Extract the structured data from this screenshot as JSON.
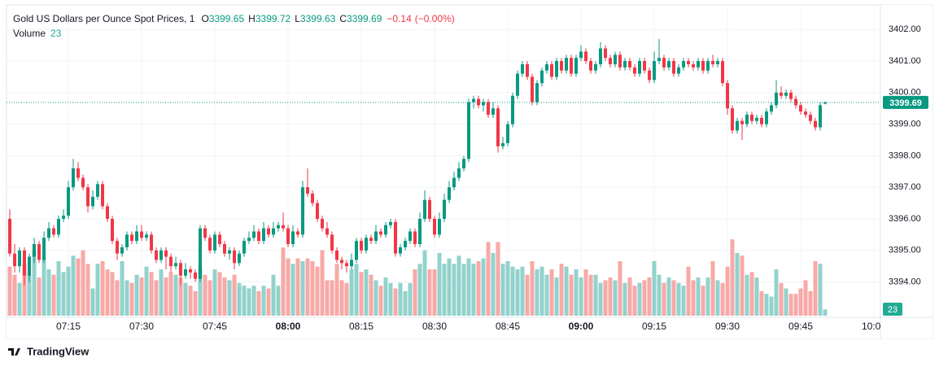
{
  "chart_data": {
    "type": "candlestick",
    "title": "Gold US Dollars per Ounce Spot Prices, 1",
    "header": [
      {
        "label": "O",
        "value": 3399.65
      },
      {
        "label": "H",
        "value": 3399.72
      },
      {
        "label": "L",
        "value": 3399.63
      },
      {
        "label": "C",
        "value": 3399.69
      }
    ],
    "change": {
      "value": -0.14,
      "label": "−0.14"
    },
    "change_percent": {
      "value": -0.004,
      "label": "(−0.00%)"
    },
    "volume_label": "Volume",
    "last_volume": 23,
    "last_price": 3399.69,
    "up_color": "#089981",
    "down_color": "#f23645",
    "volume_up_color": "#92d2cc",
    "volume_down_color": "#f7a9a7",
    "grid": true,
    "xlim": [
      -0.67,
      178.33
    ],
    "xticks": [
      {
        "value": 12,
        "label": "07:15"
      },
      {
        "value": 27,
        "label": "07:30"
      },
      {
        "value": 42,
        "label": "07:45"
      },
      {
        "value": 57,
        "label": "08:00"
      },
      {
        "value": 72,
        "label": "08:15"
      },
      {
        "value": 87,
        "label": "08:30"
      },
      {
        "value": 102,
        "label": "08:45"
      },
      {
        "value": 117,
        "label": "09:00"
      },
      {
        "value": 132,
        "label": "09:15"
      },
      {
        "value": 147,
        "label": "09:30"
      },
      {
        "value": 162,
        "label": "09:45"
      },
      {
        "value": 177,
        "label": "10:00"
      }
    ],
    "bold_xticks": [
      3,
      7
    ],
    "ylim": [
      3392.88,
      3402.78
    ],
    "yticks": [
      {
        "value": 3394,
        "label": "3394.00"
      },
      {
        "value": 3395,
        "label": "3395.00"
      },
      {
        "value": 3396,
        "label": "3396.00"
      },
      {
        "value": 3397,
        "label": "3397.00"
      },
      {
        "value": 3398,
        "label": "3398.00"
      },
      {
        "value": 3399,
        "label": "3399.00"
      },
      {
        "value": 3400,
        "label": "3400.00"
      },
      {
        "value": 3401,
        "label": "3401.00"
      },
      {
        "value": 3402,
        "label": "3402.00"
      }
    ],
    "volume_lim": [
      0,
      1140
    ],
    "candles": [
      [
        3396.0,
        3396.3,
        3394.8,
        3394.9,
        180
      ],
      [
        3394.9,
        3395.2,
        3394.3,
        3394.5,
        150
      ],
      [
        3394.5,
        3395.1,
        3394.3,
        3395.0,
        120
      ],
      [
        3395.0,
        3395.1,
        3393.9,
        3394.2,
        190
      ],
      [
        3394.2,
        3394.9,
        3394.0,
        3394.8,
        150
      ],
      [
        3394.8,
        3395.4,
        3394.6,
        3395.2,
        240
      ],
      [
        3395.2,
        3395.3,
        3394.6,
        3394.7,
        140
      ],
      [
        3394.7,
        3395.6,
        3394.6,
        3395.4,
        210
      ],
      [
        3395.4,
        3395.9,
        3395.3,
        3395.7,
        170
      ],
      [
        3395.7,
        3395.8,
        3395.4,
        3395.5,
        150
      ],
      [
        3395.5,
        3396.1,
        3395.4,
        3396.0,
        200
      ],
      [
        3396.0,
        3396.3,
        3395.9,
        3396.1,
        160
      ],
      [
        3396.1,
        3397.2,
        3396.0,
        3397.0,
        180
      ],
      [
        3397.0,
        3397.9,
        3396.9,
        3397.6,
        220
      ],
      [
        3397.6,
        3397.8,
        3397.2,
        3397.3,
        210
      ],
      [
        3397.3,
        3397.4,
        3396.9,
        3397.0,
        240
      ],
      [
        3397.0,
        3397.1,
        3396.2,
        3396.4,
        190
      ],
      [
        3396.4,
        3396.9,
        3396.3,
        3396.7,
        100
      ],
      [
        3396.7,
        3397.2,
        3396.6,
        3397.1,
        190
      ],
      [
        3397.1,
        3397.2,
        3396.3,
        3396.4,
        200
      ],
      [
        3396.4,
        3396.5,
        3395.9,
        3396.0,
        170
      ],
      [
        3396.0,
        3396.1,
        3395.2,
        3395.3,
        160
      ],
      [
        3395.3,
        3395.4,
        3394.7,
        3394.9,
        130
      ],
      [
        3394.9,
        3395.2,
        3394.8,
        3395.1,
        200
      ],
      [
        3395.1,
        3395.6,
        3395.0,
        3395.5,
        130
      ],
      [
        3395.5,
        3395.6,
        3395.2,
        3395.3,
        120
      ],
      [
        3395.3,
        3395.8,
        3395.2,
        3395.6,
        150
      ],
      [
        3395.6,
        3395.8,
        3395.3,
        3395.4,
        140
      ],
      [
        3395.4,
        3395.6,
        3395.3,
        3395.5,
        180
      ],
      [
        3395.5,
        3395.6,
        3394.9,
        3395.0,
        160
      ],
      [
        3395.0,
        3395.1,
        3394.6,
        3394.7,
        130
      ],
      [
        3394.7,
        3395.1,
        3394.6,
        3395.0,
        170
      ],
      [
        3395.0,
        3395.1,
        3394.4,
        3394.8,
        140
      ],
      [
        3394.8,
        3394.9,
        3394.3,
        3394.5,
        160
      ],
      [
        3394.5,
        3394.8,
        3394.4,
        3394.6,
        150
      ],
      [
        3394.6,
        3394.7,
        3393.9,
        3394.2,
        140
      ],
      [
        3394.2,
        3394.6,
        3394.1,
        3394.4,
        120
      ],
      [
        3394.4,
        3394.5,
        3394.1,
        3394.3,
        110
      ],
      [
        3394.3,
        3394.4,
        3394.0,
        3394.1,
        90
      ],
      [
        3394.1,
        3395.8,
        3394.0,
        3395.7,
        180
      ],
      [
        3395.7,
        3395.8,
        3395.3,
        3395.4,
        150
      ],
      [
        3395.4,
        3395.5,
        3394.9,
        3395.0,
        130
      ],
      [
        3395.0,
        3395.6,
        3394.9,
        3395.5,
        170
      ],
      [
        3395.5,
        3395.6,
        3395.1,
        3395.2,
        160
      ],
      [
        3395.2,
        3395.3,
        3394.8,
        3394.9,
        140
      ],
      [
        3394.9,
        3395.1,
        3394.7,
        3395.0,
        130
      ],
      [
        3395.0,
        3395.1,
        3394.4,
        3394.6,
        150
      ],
      [
        3394.6,
        3395.0,
        3394.5,
        3394.9,
        120
      ],
      [
        3394.9,
        3395.4,
        3394.8,
        3395.3,
        110
      ],
      [
        3395.3,
        3395.6,
        3395.2,
        3395.4,
        100
      ],
      [
        3395.4,
        3395.8,
        3395.3,
        3395.6,
        110
      ],
      [
        3395.6,
        3395.7,
        3395.2,
        3395.3,
        90
      ],
      [
        3395.3,
        3395.9,
        3395.2,
        3395.7,
        110
      ],
      [
        3395.7,
        3395.8,
        3395.4,
        3395.5,
        100
      ],
      [
        3395.5,
        3395.9,
        3395.4,
        3395.7,
        150
      ],
      [
        3395.7,
        3395.9,
        3395.6,
        3395.8,
        110
      ],
      [
        3395.8,
        3396.2,
        3395.6,
        3395.7,
        250
      ],
      [
        3395.7,
        3395.8,
        3395.1,
        3395.2,
        210
      ],
      [
        3395.2,
        3395.8,
        3395.1,
        3395.6,
        190
      ],
      [
        3395.6,
        3395.7,
        3395.4,
        3395.5,
        210
      ],
      [
        3395.5,
        3397.2,
        3395.4,
        3397.0,
        200
      ],
      [
        3397.0,
        3397.6,
        3396.7,
        3396.8,
        210
      ],
      [
        3396.8,
        3396.9,
        3396.4,
        3396.5,
        200
      ],
      [
        3396.5,
        3396.6,
        3395.9,
        3396.0,
        180
      ],
      [
        3396.0,
        3396.1,
        3395.6,
        3395.7,
        240
      ],
      [
        3395.7,
        3395.9,
        3395.4,
        3395.5,
        130
      ],
      [
        3395.5,
        3395.6,
        3394.9,
        3395.0,
        130
      ],
      [
        3395.0,
        3395.1,
        3394.6,
        3394.7,
        190
      ],
      [
        3394.7,
        3394.8,
        3394.4,
        3394.6,
        130
      ],
      [
        3394.6,
        3394.7,
        3394.3,
        3394.5,
        120
      ],
      [
        3394.5,
        3394.9,
        3394.4,
        3394.7,
        170
      ],
      [
        3394.7,
        3395.4,
        3394.6,
        3395.3,
        190
      ],
      [
        3395.3,
        3395.4,
        3394.9,
        3395.0,
        160
      ],
      [
        3395.0,
        3395.5,
        3394.9,
        3395.4,
        170
      ],
      [
        3395.4,
        3395.5,
        3395.2,
        3395.3,
        150
      ],
      [
        3395.3,
        3395.8,
        3395.2,
        3395.6,
        130
      ],
      [
        3395.6,
        3395.7,
        3395.4,
        3395.5,
        110
      ],
      [
        3395.5,
        3395.9,
        3395.4,
        3395.8,
        140
      ],
      [
        3395.8,
        3396.0,
        3395.7,
        3395.9,
        120
      ],
      [
        3395.9,
        3396.0,
        3394.8,
        3394.9,
        100
      ],
      [
        3394.9,
        3395.2,
        3394.8,
        3395.1,
        120
      ],
      [
        3395.1,
        3395.4,
        3395.0,
        3395.3,
        90
      ],
      [
        3395.3,
        3395.7,
        3395.2,
        3395.6,
        120
      ],
      [
        3395.6,
        3395.7,
        3395.1,
        3395.2,
        170
      ],
      [
        3395.2,
        3396.2,
        3395.1,
        3396.0,
        190
      ],
      [
        3396.0,
        3396.9,
        3395.9,
        3396.6,
        240
      ],
      [
        3396.6,
        3396.7,
        3395.9,
        3396.0,
        170
      ],
      [
        3396.0,
        3396.1,
        3395.4,
        3395.5,
        170
      ],
      [
        3395.5,
        3396.2,
        3395.4,
        3396.0,
        230
      ],
      [
        3396.0,
        3396.8,
        3395.9,
        3396.6,
        190
      ],
      [
        3396.6,
        3397.2,
        3396.5,
        3397.0,
        210
      ],
      [
        3397.0,
        3397.5,
        3396.9,
        3397.3,
        190
      ],
      [
        3397.3,
        3397.8,
        3397.2,
        3397.6,
        220
      ],
      [
        3397.6,
        3398.0,
        3397.5,
        3397.9,
        190
      ],
      [
        3397.9,
        3399.8,
        3397.8,
        3399.7,
        210
      ],
      [
        3399.7,
        3399.9,
        3399.5,
        3399.8,
        190
      ],
      [
        3399.8,
        3399.9,
        3399.5,
        3399.6,
        200
      ],
      [
        3399.6,
        3399.8,
        3399.4,
        3399.7,
        210
      ],
      [
        3399.7,
        3399.8,
        3399.2,
        3399.3,
        270
      ],
      [
        3399.3,
        3399.7,
        3399.2,
        3399.5,
        230
      ],
      [
        3399.5,
        3399.6,
        3398.1,
        3398.3,
        270
      ],
      [
        3398.3,
        3398.6,
        3398.2,
        3398.4,
        190
      ],
      [
        3398.4,
        3399.1,
        3398.3,
        3399.0,
        200
      ],
      [
        3399.0,
        3400.0,
        3398.9,
        3399.9,
        180
      ],
      [
        3399.9,
        3400.7,
        3399.8,
        3400.6,
        170
      ],
      [
        3400.6,
        3401.0,
        3400.5,
        3400.9,
        180
      ],
      [
        3400.9,
        3401.0,
        3400.4,
        3400.5,
        150
      ],
      [
        3400.5,
        3400.6,
        3399.6,
        3399.7,
        200
      ],
      [
        3399.7,
        3400.4,
        3399.6,
        3400.3,
        170
      ],
      [
        3400.3,
        3400.8,
        3400.2,
        3400.7,
        180
      ],
      [
        3400.7,
        3401.0,
        3400.6,
        3400.9,
        150
      ],
      [
        3400.9,
        3401.0,
        3400.4,
        3400.5,
        170
      ],
      [
        3400.5,
        3401.1,
        3400.4,
        3401.0,
        140
      ],
      [
        3401.0,
        3401.1,
        3400.6,
        3400.7,
        190
      ],
      [
        3400.7,
        3401.2,
        3400.6,
        3401.1,
        180
      ],
      [
        3401.1,
        3401.2,
        3400.5,
        3400.6,
        150
      ],
      [
        3400.6,
        3401.2,
        3400.5,
        3401.1,
        170
      ],
      [
        3401.1,
        3401.5,
        3401.0,
        3401.3,
        140
      ],
      [
        3401.3,
        3401.4,
        3400.9,
        3401.0,
        170
      ],
      [
        3401.0,
        3401.1,
        3400.6,
        3400.7,
        150
      ],
      [
        3400.7,
        3401.0,
        3400.6,
        3400.9,
        150
      ],
      [
        3400.9,
        3401.6,
        3400.8,
        3401.4,
        120
      ],
      [
        3401.4,
        3401.5,
        3401.0,
        3401.1,
        130
      ],
      [
        3401.1,
        3401.2,
        3400.8,
        3400.9,
        140
      ],
      [
        3400.9,
        3401.3,
        3400.8,
        3401.2,
        130
      ],
      [
        3401.2,
        3401.3,
        3400.7,
        3400.8,
        200
      ],
      [
        3400.8,
        3401.1,
        3400.7,
        3401.0,
        120
      ],
      [
        3401.0,
        3401.1,
        3400.7,
        3400.8,
        140
      ],
      [
        3400.8,
        3400.9,
        3400.5,
        3400.6,
        110
      ],
      [
        3400.6,
        3401.1,
        3400.5,
        3401.0,
        120
      ],
      [
        3401.0,
        3401.1,
        3400.6,
        3400.7,
        130
      ],
      [
        3400.7,
        3400.8,
        3400.3,
        3400.4,
        140
      ],
      [
        3400.4,
        3401.3,
        3400.3,
        3401.0,
        200
      ],
      [
        3401.0,
        3401.7,
        3400.9,
        3401.1,
        150
      ],
      [
        3401.1,
        3401.2,
        3400.7,
        3400.8,
        120
      ],
      [
        3400.8,
        3401.1,
        3400.7,
        3401.0,
        140
      ],
      [
        3401.0,
        3401.1,
        3400.5,
        3400.6,
        130
      ],
      [
        3400.6,
        3400.9,
        3400.5,
        3400.8,
        120
      ],
      [
        3400.8,
        3401.1,
        3400.7,
        3401.0,
        110
      ],
      [
        3401.0,
        3401.1,
        3400.8,
        3400.9,
        180
      ],
      [
        3400.9,
        3401.0,
        3400.7,
        3400.8,
        130
      ],
      [
        3400.8,
        3401.1,
        3400.7,
        3401.0,
        140
      ],
      [
        3401.0,
        3401.1,
        3400.6,
        3400.7,
        110
      ],
      [
        3400.7,
        3401.1,
        3400.6,
        3401.0,
        140
      ],
      [
        3401.0,
        3401.2,
        3400.8,
        3400.9,
        200
      ],
      [
        3400.9,
        3401.1,
        3400.8,
        3401.0,
        130
      ],
      [
        3401.0,
        3401.1,
        3400.2,
        3400.3,
        120
      ],
      [
        3400.3,
        3400.4,
        3399.3,
        3399.5,
        180
      ],
      [
        3399.5,
        3399.6,
        3398.7,
        3398.8,
        280
      ],
      [
        3398.8,
        3399.2,
        3398.7,
        3399.1,
        230
      ],
      [
        3399.1,
        3399.2,
        3398.5,
        3399.0,
        220
      ],
      [
        3399.0,
        3399.4,
        3398.9,
        3399.3,
        150
      ],
      [
        3399.3,
        3399.4,
        3399.0,
        3399.1,
        160
      ],
      [
        3399.1,
        3399.3,
        3399.0,
        3399.2,
        140
      ],
      [
        3399.2,
        3399.3,
        3398.9,
        3399.0,
        90
      ],
      [
        3399.0,
        3399.5,
        3398.9,
        3399.4,
        80
      ],
      [
        3399.4,
        3399.7,
        3399.3,
        3399.6,
        70
      ],
      [
        3399.6,
        3400.4,
        3399.5,
        3400.0,
        170
      ],
      [
        3400.0,
        3400.2,
        3399.8,
        3399.9,
        120
      ],
      [
        3399.9,
        3400.1,
        3399.8,
        3400.0,
        100
      ],
      [
        3400.0,
        3400.1,
        3399.7,
        3399.8,
        80
      ],
      [
        3399.8,
        3399.9,
        3399.5,
        3399.6,
        80
      ],
      [
        3399.6,
        3399.7,
        3399.3,
        3399.4,
        100
      ],
      [
        3399.4,
        3399.5,
        3399.2,
        3399.3,
        130
      ],
      [
        3399.3,
        3399.4,
        3399.0,
        3399.1,
        90
      ],
      [
        3399.1,
        3399.2,
        3398.8,
        3398.9,
        200
      ],
      [
        3398.9,
        3399.7,
        3398.8,
        3399.6,
        190
      ],
      [
        3399.65,
        3399.72,
        3399.63,
        3399.69,
        23
      ]
    ]
  },
  "brand": "TradingView"
}
